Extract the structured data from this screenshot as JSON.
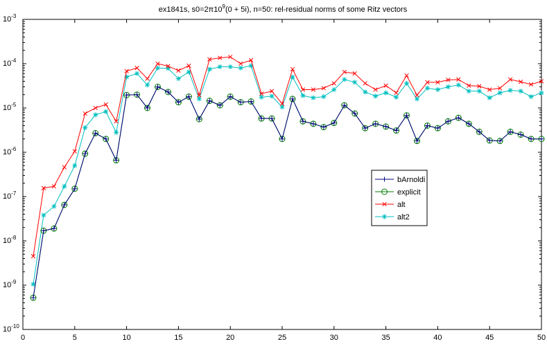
{
  "chart_data": {
    "type": "line",
    "title": {
      "prefix": "ex1841s, s0=2π10",
      "superscript": "9",
      "suffix": "(0 + 5i), n=50:  rel-residual norms of some Ritz vectors"
    },
    "xlabel": "",
    "ylabel": "",
    "xlim": [
      0,
      50
    ],
    "ylim_log10": [
      -10,
      -3
    ],
    "y_scale": "log",
    "grid": false,
    "legend_position": "center-right",
    "x_ticks": [
      0,
      5,
      10,
      15,
      20,
      25,
      30,
      35,
      40,
      45,
      50
    ],
    "y_tick_exponents": [
      -10,
      -9,
      -8,
      -7,
      -6,
      -5,
      -4,
      -3
    ],
    "y_tick_base": "10",
    "x": [
      1,
      2,
      3,
      4,
      5,
      6,
      7,
      8,
      9,
      10,
      11,
      12,
      13,
      14,
      15,
      16,
      17,
      18,
      19,
      20,
      21,
      22,
      23,
      24,
      25,
      26,
      27,
      28,
      29,
      30,
      31,
      32,
      33,
      34,
      35,
      36,
      37,
      38,
      39,
      40,
      41,
      42,
      43,
      44,
      45,
      46,
      47,
      48,
      49,
      50
    ],
    "series": [
      {
        "name": "bArnoldi",
        "color": "#00007f",
        "marker": "plus",
        "values": [
          5.2e-10,
          1.7e-08,
          1.9e-08,
          6.5e-08,
          1.5e-07,
          9.3e-07,
          2.7e-06,
          2e-06,
          6.6e-07,
          1.96e-05,
          2e-05,
          1e-05,
          3e-05,
          2.3e-05,
          1.35e-05,
          1.8e-05,
          5.6e-06,
          1.45e-05,
          1.15e-05,
          1.8e-05,
          1.35e-05,
          1.4e-05,
          5.8e-06,
          5.8e-06,
          2e-06,
          1.6e-05,
          5e-06,
          4.4e-06,
          3.7e-06,
          4.6e-06,
          1.15e-05,
          7.5e-06,
          3.5e-06,
          4.4e-06,
          3.8e-06,
          3.1e-06,
          6.8e-06,
          1.8e-06,
          4e-06,
          3.5e-06,
          5e-06,
          6e-06,
          4.4e-06,
          2.9e-06,
          1.85e-06,
          1.8e-06,
          2.9e-06,
          2.5e-06,
          2e-06,
          2e-06
        ]
      },
      {
        "name": "explicit",
        "color": "#007f00",
        "marker": "circle",
        "values": [
          5.2e-10,
          1.7e-08,
          1.9e-08,
          6.5e-08,
          1.5e-07,
          9.3e-07,
          2.7e-06,
          2e-06,
          6.6e-07,
          1.96e-05,
          2e-05,
          1e-05,
          3e-05,
          2.3e-05,
          1.35e-05,
          1.8e-05,
          5.6e-06,
          1.45e-05,
          1.15e-05,
          1.8e-05,
          1.35e-05,
          1.4e-05,
          5.8e-06,
          5.8e-06,
          2e-06,
          1.6e-05,
          5e-06,
          4.4e-06,
          3.7e-06,
          4.6e-06,
          1.15e-05,
          7.5e-06,
          3.5e-06,
          4.4e-06,
          3.8e-06,
          3.1e-06,
          6.8e-06,
          1.8e-06,
          4e-06,
          3.5e-06,
          5e-06,
          6e-06,
          4.4e-06,
          2.9e-06,
          1.85e-06,
          1.8e-06,
          2.9e-06,
          2.5e-06,
          2e-06,
          2e-06
        ]
      },
      {
        "name": "alt",
        "color": "#ff0000",
        "marker": "x",
        "values": [
          4.5e-09,
          1.55e-07,
          1.7e-07,
          4.6e-07,
          1.05e-06,
          7.5e-06,
          1e-05,
          1.2e-05,
          5e-06,
          6.8e-05,
          8e-05,
          4.6e-05,
          0.0001,
          8.8e-05,
          7e-05,
          9e-05,
          1.95e-05,
          0.000125,
          0.000135,
          0.000142,
          0.0001,
          0.00012,
          2.1e-05,
          2.4e-05,
          1.25e-05,
          7.5e-05,
          2.6e-05,
          2.6e-05,
          2.8e-05,
          3.6e-05,
          6.5e-05,
          6e-05,
          3.6e-05,
          2.6e-05,
          3.2e-05,
          2.2e-05,
          5.4e-05,
          1.95e-05,
          3.8e-05,
          3.8e-05,
          4.3e-05,
          4.4e-05,
          3.2e-05,
          3.1e-05,
          2.6e-05,
          2.8e-05,
          4.4e-05,
          3.9e-05,
          3.4e-05,
          4e-05
        ]
      },
      {
        "name": "alt2",
        "color": "#00bfbf",
        "marker": "star",
        "values": [
          1.05e-09,
          3.8e-08,
          6e-08,
          1.7e-07,
          5e-07,
          3.6e-06,
          7e-06,
          8.3e-06,
          2.8e-06,
          5e-05,
          6e-05,
          3.3e-05,
          8e-05,
          7.8e-05,
          4.6e-05,
          6.5e-05,
          1.6e-05,
          7.5e-05,
          8.5e-05,
          8.5e-05,
          8e-05,
          9e-05,
          1.75e-05,
          1.85e-05,
          1.05e-05,
          5e-05,
          1.9e-05,
          1.7e-05,
          1.8e-05,
          2.6e-05,
          4.4e-05,
          3.8e-05,
          2.3e-05,
          1.85e-05,
          2.2e-05,
          1.75e-05,
          3.6e-05,
          1.6e-05,
          2.8e-05,
          2.6e-05,
          3e-05,
          3.3e-05,
          2.4e-05,
          2.4e-05,
          1.7e-05,
          2.2e-05,
          2.5e-05,
          2.4e-05,
          1.8e-05,
          2.2e-05
        ]
      }
    ]
  }
}
